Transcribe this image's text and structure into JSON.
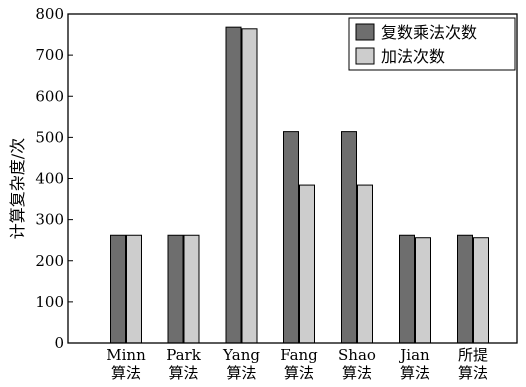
{
  "chart_data": {
    "type": "bar",
    "categories": [
      [
        "Minn",
        "算法"
      ],
      [
        "Park",
        "算法"
      ],
      [
        "Yang",
        "算法"
      ],
      [
        "Fang",
        "算法"
      ],
      [
        "Shao",
        "算法"
      ],
      [
        "Jian",
        "算法"
      ],
      [
        "所提",
        "算法"
      ]
    ],
    "series": [
      {
        "name": "复数乘法次数",
        "color": "#6e6e6e",
        "values": [
          262,
          262,
          768,
          514,
          514,
          262,
          262
        ]
      },
      {
        "name": "加法次数",
        "color": "#cdcdcd",
        "values": [
          262,
          262,
          764,
          384,
          384,
          256,
          256
        ]
      }
    ],
    "ylabel": "计算复杂度/次",
    "ylim": [
      0,
      800
    ],
    "yticks": [
      0,
      100,
      200,
      300,
      400,
      500,
      600,
      700,
      800
    ],
    "grid": false,
    "legend": "top-right"
  }
}
